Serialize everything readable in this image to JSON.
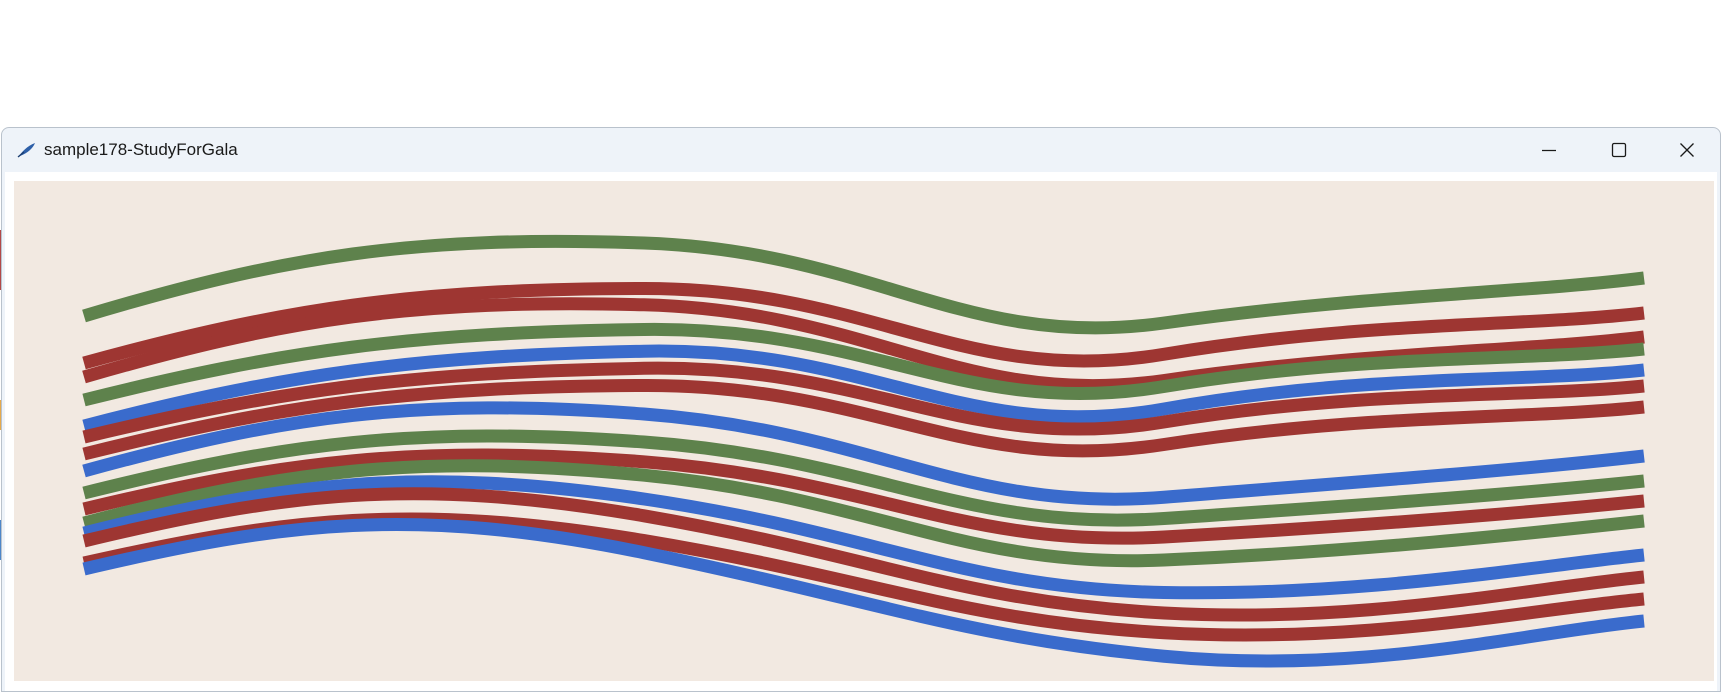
{
  "window": {
    "title": "sample178-StudyForGala",
    "app_icon": "feather-pen-icon",
    "controls": {
      "minimize_icon": "minimize-icon",
      "maximize_icon": "maximize-icon",
      "close_icon": "close-icon"
    }
  },
  "sketch": {
    "background_color": "#f2e9e1",
    "colors": {
      "green": "#5e824c",
      "red": "#9e3632",
      "blue": "#3a6bcc"
    },
    "ribbon_colors": [
      "green",
      "red",
      "red",
      "green",
      "blue",
      "red",
      "red",
      "blue",
      "green",
      "red",
      "green",
      "blue",
      "red",
      "red",
      "blue"
    ]
  }
}
